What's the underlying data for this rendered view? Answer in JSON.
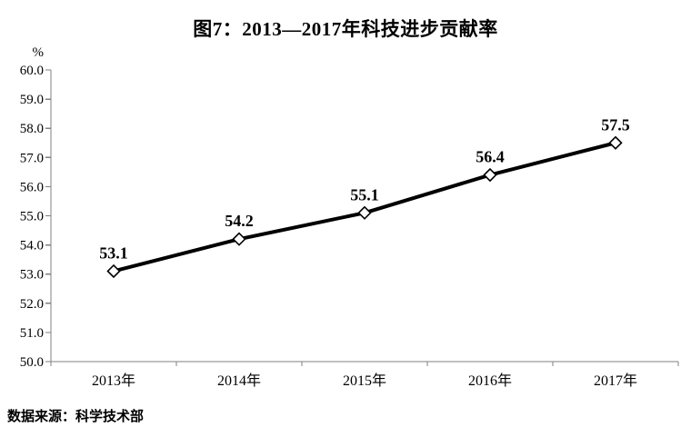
{
  "title": "图7：2013—2017年科技进步贡献率",
  "source_note": "数据来源：科学技术部",
  "chart_data": {
    "type": "line",
    "title": "图7：2013—2017年科技进步贡献率",
    "unit_label": "%",
    "categories": [
      "2013年",
      "2014年",
      "2015年",
      "2016年",
      "2017年"
    ],
    "series": [
      {
        "name": "科技进步贡献率",
        "values": [
          53.1,
          54.2,
          55.1,
          56.4,
          57.5
        ]
      }
    ],
    "data_labels": [
      "53.1",
      "54.2",
      "55.1",
      "56.4",
      "57.5"
    ],
    "xlabel": "",
    "ylabel": "%",
    "ylim": [
      50.0,
      60.0
    ],
    "ytick_step": 1.0,
    "ytick_labels": [
      "50.0",
      "51.0",
      "52.0",
      "53.0",
      "54.0",
      "55.0",
      "56.0",
      "57.0",
      "58.0",
      "59.0",
      "60.0"
    ],
    "grid": false,
    "legend_position": "none",
    "marker": "diamond-open",
    "colors": {
      "line": "#000000",
      "marker_fill": "#ffffff",
      "marker_stroke": "#000000",
      "axis": "#808080",
      "text": "#000000",
      "background": "#ffffff"
    }
  }
}
